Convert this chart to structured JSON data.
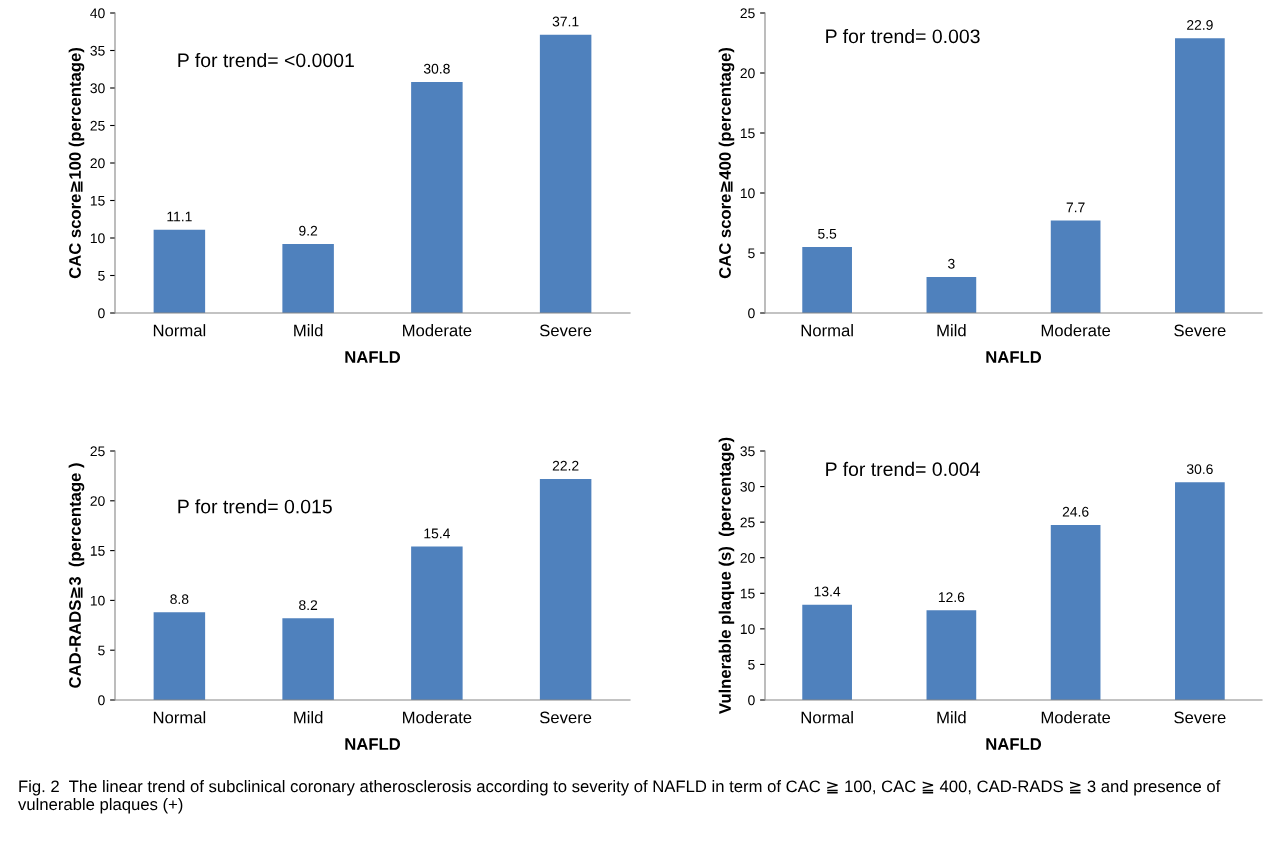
{
  "chart_data": [
    {
      "type": "bar",
      "categories": [
        "Normal",
        "Mild",
        "Moderate",
        "Severe"
      ],
      "values": [
        11.1,
        9.2,
        30.8,
        37.1
      ],
      "color": "#4f81bd",
      "ylabel": "CAC score≧100 (percentage)",
      "xlabel": "NAFLD",
      "ylim": [
        0,
        40
      ],
      "yticks": [
        0,
        5,
        10,
        15,
        20,
        25,
        30,
        35,
        40
      ],
      "data_labels": true,
      "grid": false,
      "annotations": [
        "P for trend= <0.0001"
      ]
    },
    {
      "type": "bar",
      "categories": [
        "Normal",
        "Mild",
        "Moderate",
        "Severe"
      ],
      "values": [
        5.5,
        3,
        7.7,
        22.9
      ],
      "color": "#4f81bd",
      "ylabel": "CAC score≧400 (percentage)",
      "xlabel": "NAFLD",
      "ylim": [
        0,
        25
      ],
      "yticks": [
        0,
        5,
        10,
        15,
        20,
        25
      ],
      "data_labels": true,
      "grid": false,
      "annotations": [
        "P for trend= 0.003"
      ]
    },
    {
      "type": "bar",
      "categories": [
        "Normal",
        "Mild",
        "Moderate",
        "Severe"
      ],
      "values": [
        8.8,
        8.2,
        15.4,
        22.2
      ],
      "color": "#4f81bd",
      "ylabel": "CAD-RADS≧3  (percentage )",
      "xlabel": "NAFLD",
      "ylim": [
        0,
        25
      ],
      "yticks": [
        0,
        5,
        10,
        15,
        20,
        25
      ],
      "data_labels": true,
      "grid": false,
      "annotations": [
        "P for trend= 0.015"
      ]
    },
    {
      "type": "bar",
      "categories": [
        "Normal",
        "Mild",
        "Moderate",
        "Severe"
      ],
      "values": [
        13.4,
        12.6,
        24.6,
        30.6
      ],
      "color": "#4f81bd",
      "ylabel": "Vulnerable plaque (s)  (percentage)",
      "xlabel": "NAFLD",
      "ylim": [
        0,
        35
      ],
      "yticks": [
        0,
        5,
        10,
        15,
        20,
        25,
        30,
        35
      ],
      "data_labels": true,
      "grid": false,
      "annotations": [
        "P for trend= 0.004",
        "Fig. 2  The linear trend of subclinical coronary atherosclerosis according to severity of NAFLD in term of CAC ≧ 100, CAC ≧ 400, CAD-RADS ≧ 3 and presence of vulnerable plaques (+)"
      ]
    }
  ]
}
